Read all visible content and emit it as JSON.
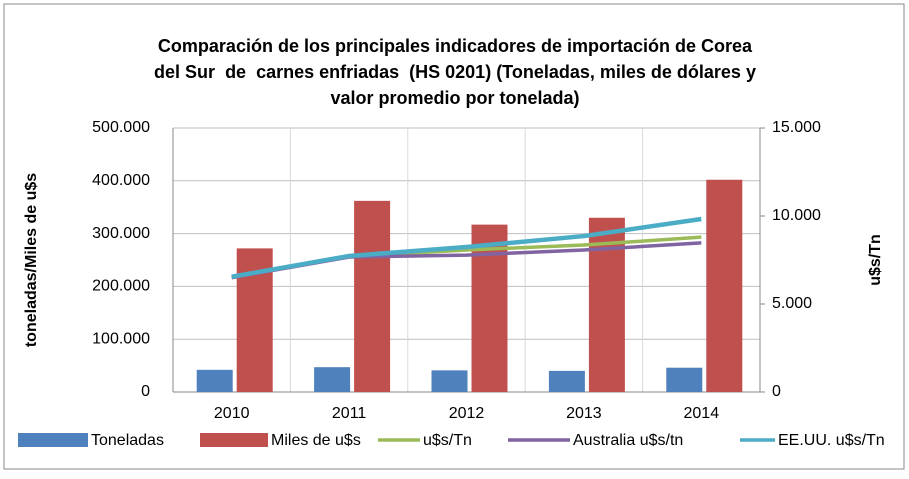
{
  "chart_data": {
    "type": "bar",
    "title": [
      "Comparación de los principales indicadores de importación de Corea",
      "del Sur  de  carnes enfriadas  (HS 0201) (Toneladas, miles de dólares y",
      "valor promedio por tonelada)"
    ],
    "y_label": "toneladas/Miles de u$s",
    "y2_label": "u$s/Tn",
    "categories": [
      "2010",
      "2011",
      "2012",
      "2013",
      "2014"
    ],
    "series": [
      {
        "name": "Toneladas",
        "type": "bar",
        "color": "#4f81bd",
        "values": [
          42000,
          47000,
          41000,
          40000,
          46000
        ]
      },
      {
        "name": "Miles de u$s",
        "type": "bar",
        "color": "#c0504d",
        "values": [
          272000,
          362000,
          317000,
          330000,
          402000
        ]
      },
      {
        "name": "u$s/Tn",
        "type": "line",
        "axis": "y2",
        "color": "#9bbb59",
        "values": [
          6500,
          7700,
          8070,
          8350,
          8800
        ]
      },
      {
        "name": "Australia u$s/tn",
        "type": "line",
        "axis": "y2",
        "color": "#8064a2",
        "values": [
          6500,
          7670,
          7780,
          8070,
          8470
        ]
      },
      {
        "name": "EE.UU. u$s/Tn",
        "type": "line",
        "axis": "y2",
        "color": "#4bacc6",
        "values": [
          6550,
          7730,
          8240,
          8860,
          9830
        ]
      }
    ],
    "ylim": [
      0,
      500000
    ],
    "yticks": [
      0,
      {
        "value": 100000,
        "label": "100.000"
      },
      {
        "value": 200000,
        "label": "200.000"
      },
      {
        "value": 300000,
        "label": "300.000"
      },
      {
        "value": 400000,
        "label": "400.000"
      },
      {
        "value": 500000,
        "label": "500.000"
      }
    ],
    "y2lim": [
      0,
      15000
    ],
    "y2ticks": [
      0,
      {
        "value": 5000,
        "label": "5.000"
      },
      {
        "value": 10000,
        "label": "10.000"
      },
      {
        "value": 15000,
        "label": "15.000"
      }
    ],
    "grid": true,
    "legend": "bottom"
  }
}
